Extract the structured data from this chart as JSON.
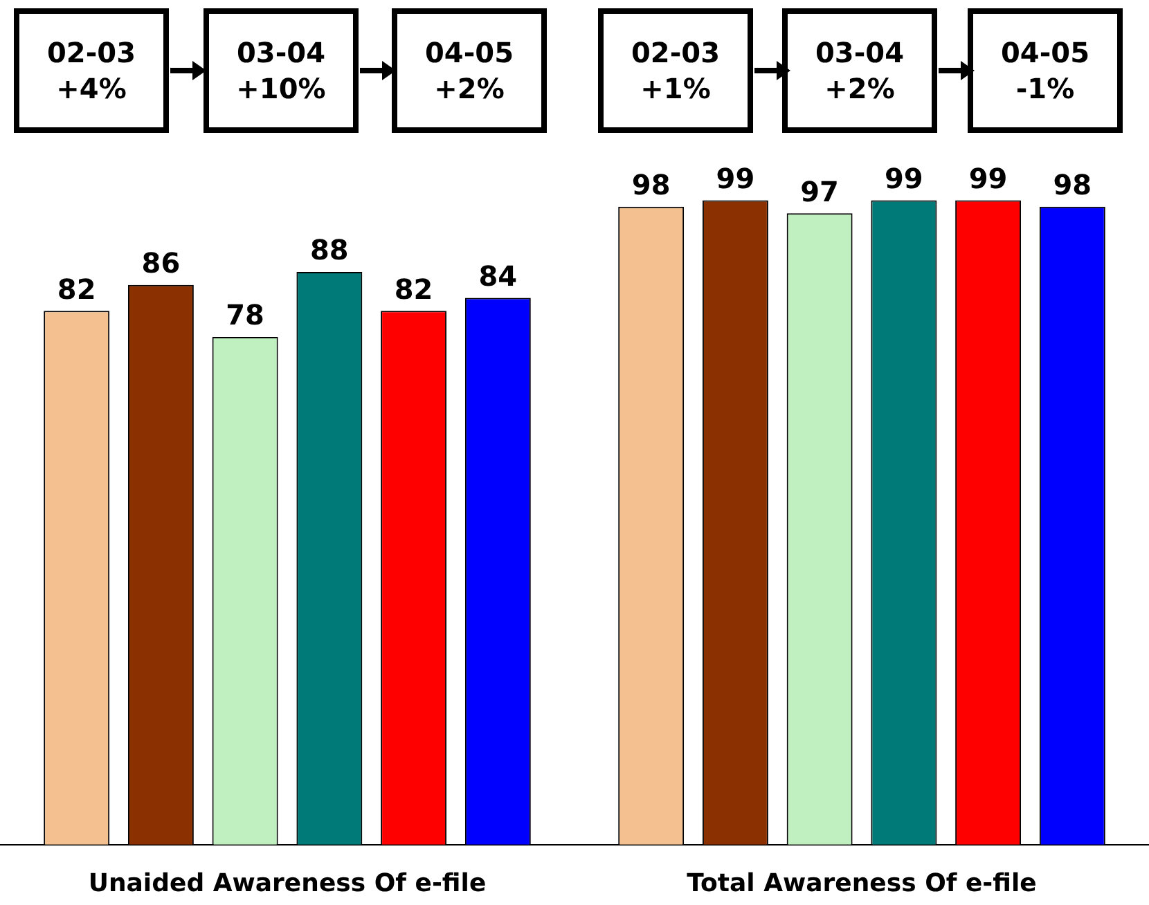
{
  "chart_data": {
    "type": "bar",
    "categories": [
      "Unaided Awareness Of e-file",
      "Total Awareness Of e-file"
    ],
    "series": [
      {
        "color": "#f4c090",
        "values": [
          82,
          98
        ]
      },
      {
        "color": "#8b3000",
        "values": [
          86,
          99
        ]
      },
      {
        "color": "#c0f0c0",
        "values": [
          78,
          97
        ]
      },
      {
        "color": "#007a78",
        "values": [
          88,
          99
        ]
      },
      {
        "color": "#ff0000",
        "values": [
          82,
          99
        ]
      },
      {
        "color": "#0000ff",
        "values": [
          84,
          98
        ]
      }
    ],
    "data_labels": true,
    "grid": false,
    "legend": false,
    "tick_labels": "x",
    "annotations": [
      "02-03 +4%",
      "03-04 +10%",
      "04-05 +2%",
      "02-03 +1%",
      "03-04 +2%",
      "04-05 -1%"
    ]
  }
}
